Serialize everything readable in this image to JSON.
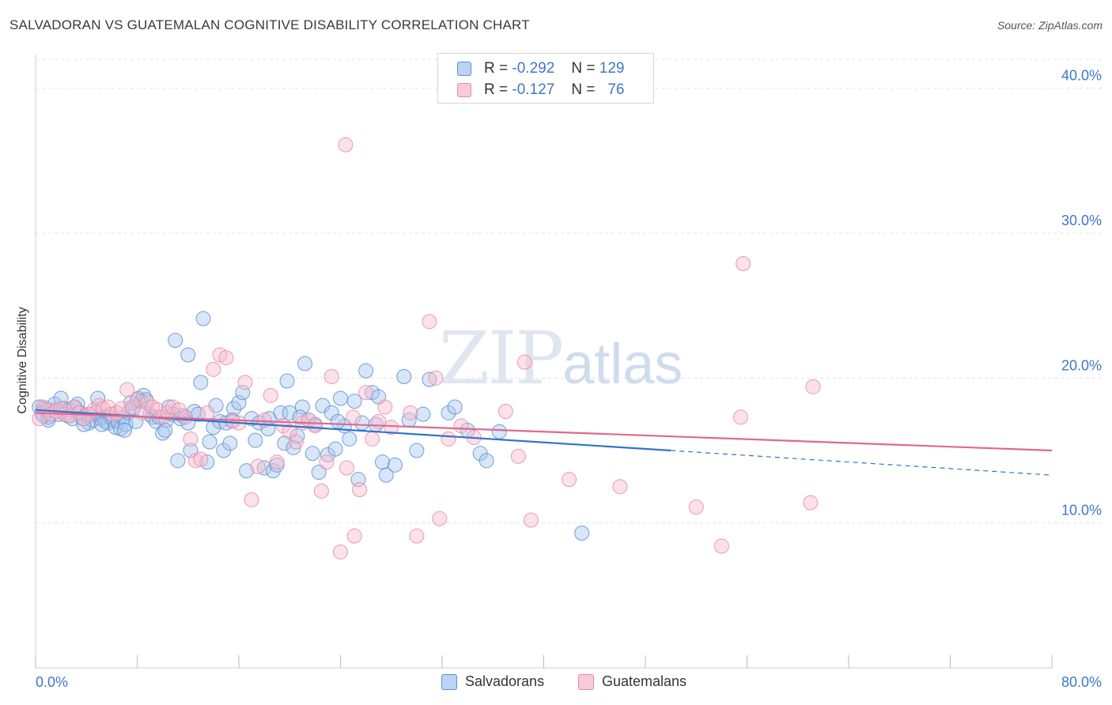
{
  "header": {
    "title": "SALVADORAN VS GUATEMALAN COGNITIVE DISABILITY CORRELATION CHART",
    "source": "Source: ZipAtlas.com"
  },
  "legend": {
    "rows": [
      {
        "r_label": "R =",
        "r_value": "-0.292",
        "n_label": "N =",
        "n_value": "129"
      },
      {
        "r_label": "R =",
        "r_value": "-0.127",
        "n_label": "N =",
        "n_value": "76"
      }
    ],
    "bottom": [
      "Salvadorans",
      "Guatemalans"
    ]
  },
  "watermark": {
    "zip": "ZIP",
    "atlas": "atlas"
  },
  "colors": {
    "blue_fill": "#a9c8f0",
    "blue_stroke": "#5b8fd4",
    "blue_line": "#2f74c8",
    "pink_fill": "#f6bccd",
    "pink_stroke": "#e98aa7",
    "pink_line": "#e0688e",
    "axis_text": "#3d78c9",
    "grid": "#e3e3e3"
  },
  "chart_data": {
    "type": "scatter",
    "title": "SALVADORAN VS GUATEMALAN COGNITIVE DISABILITY CORRELATION CHART",
    "xlabel": "",
    "ylabel": "Cognitive Disability",
    "xlim": [
      0,
      80
    ],
    "ylim": [
      0,
      42
    ],
    "x_tick_labels": [
      "0.0%",
      "80.0%"
    ],
    "y_ticks": [
      10,
      20,
      30,
      40
    ],
    "y_tick_labels": [
      "10.0%",
      "20.0%",
      "30.0%",
      "40.0%"
    ],
    "grid": true,
    "legend_position": "top-center",
    "series": [
      {
        "name": "Salvadorans",
        "r": -0.292,
        "n": 129,
        "trend": {
          "x_solid": [
            0,
            50
          ],
          "y_solid": [
            17.8,
            15.0
          ],
          "x_dashed": [
            50,
            80
          ],
          "y_dashed": [
            15.0,
            13.3
          ]
        },
        "points": [
          [
            0.3,
            18.0
          ],
          [
            0.5,
            17.6
          ],
          [
            0.7,
            17.9
          ],
          [
            1.0,
            17.1
          ],
          [
            1.2,
            17.8
          ],
          [
            1.5,
            18.2
          ],
          [
            1.8,
            17.5
          ],
          [
            2.0,
            18.6
          ],
          [
            2.2,
            17.9
          ],
          [
            2.5,
            17.4
          ],
          [
            2.7,
            17.8
          ],
          [
            2.9,
            17.2
          ],
          [
            3.1,
            18.0
          ],
          [
            3.3,
            18.2
          ],
          [
            3.5,
            17.6
          ],
          [
            3.7,
            17.2
          ],
          [
            4.0,
            17.4
          ],
          [
            4.2,
            16.9
          ],
          [
            4.5,
            17.1
          ],
          [
            4.7,
            17.6
          ],
          [
            4.9,
            18.6
          ],
          [
            5.1,
            17.2
          ],
          [
            5.3,
            17.3
          ],
          [
            5.5,
            17.0
          ],
          [
            5.7,
            16.9
          ],
          [
            5.9,
            17.3
          ],
          [
            6.1,
            17.1
          ],
          [
            6.3,
            16.6
          ],
          [
            6.5,
            17.0
          ],
          [
            6.7,
            16.5
          ],
          [
            6.9,
            17.3
          ],
          [
            7.1,
            16.8
          ],
          [
            7.3,
            17.6
          ],
          [
            7.5,
            18.3
          ],
          [
            7.7,
            17.9
          ],
          [
            7.9,
            17.0
          ],
          [
            8.1,
            18.6
          ],
          [
            8.3,
            18.4
          ],
          [
            8.5,
            18.8
          ],
          [
            8.7,
            18.5
          ],
          [
            9.0,
            17.5
          ],
          [
            9.2,
            17.3
          ],
          [
            9.5,
            17.0
          ],
          [
            9.7,
            17.3
          ],
          [
            10.0,
            16.2
          ],
          [
            10.3,
            17.1
          ],
          [
            10.5,
            18.0
          ],
          [
            10.8,
            17.5
          ],
          [
            11.0,
            22.6
          ],
          [
            11.2,
            14.3
          ],
          [
            11.4,
            17.2
          ],
          [
            11.6,
            17.4
          ],
          [
            12.0,
            16.9
          ],
          [
            12.2,
            15.0
          ],
          [
            12.5,
            17.7
          ],
          [
            12.8,
            17.5
          ],
          [
            13.0,
            19.7
          ],
          [
            13.2,
            24.1
          ],
          [
            13.5,
            14.2
          ],
          [
            13.7,
            15.6
          ],
          [
            14.0,
            16.6
          ],
          [
            14.2,
            18.1
          ],
          [
            14.5,
            17.0
          ],
          [
            14.8,
            15.0
          ],
          [
            15.0,
            16.9
          ],
          [
            15.3,
            15.5
          ],
          [
            15.6,
            17.9
          ],
          [
            16.0,
            18.3
          ],
          [
            16.3,
            19.0
          ],
          [
            16.6,
            13.6
          ],
          [
            17.0,
            17.2
          ],
          [
            17.3,
            15.7
          ],
          [
            17.6,
            16.9
          ],
          [
            18.0,
            13.8
          ],
          [
            18.4,
            17.2
          ],
          [
            18.7,
            13.6
          ],
          [
            19.0,
            14.0
          ],
          [
            19.3,
            17.6
          ],
          [
            19.6,
            15.5
          ],
          [
            19.8,
            19.8
          ],
          [
            20.0,
            17.6
          ],
          [
            20.3,
            15.2
          ],
          [
            20.6,
            16.0
          ],
          [
            21.0,
            18.0
          ],
          [
            21.2,
            21.0
          ],
          [
            21.5,
            17.1
          ],
          [
            21.8,
            14.8
          ],
          [
            22.0,
            16.8
          ],
          [
            22.3,
            13.5
          ],
          [
            22.6,
            18.1
          ],
          [
            23.0,
            14.7
          ],
          [
            23.3,
            17.6
          ],
          [
            23.6,
            15.1
          ],
          [
            24.0,
            18.6
          ],
          [
            24.3,
            16.7
          ],
          [
            24.7,
            15.8
          ],
          [
            25.1,
            18.4
          ],
          [
            25.4,
            13.0
          ],
          [
            25.7,
            16.9
          ],
          [
            26.0,
            20.5
          ],
          [
            26.5,
            19.0
          ],
          [
            27.0,
            18.7
          ],
          [
            27.3,
            14.2
          ],
          [
            27.6,
            13.3
          ],
          [
            28.3,
            14.0
          ],
          [
            29.0,
            20.1
          ],
          [
            29.4,
            17.1
          ],
          [
            30.0,
            15.0
          ],
          [
            31.0,
            19.9
          ],
          [
            32.5,
            17.6
          ],
          [
            33.0,
            18.0
          ],
          [
            34.0,
            16.4
          ],
          [
            35.0,
            14.8
          ],
          [
            35.5,
            14.3
          ],
          [
            36.5,
            16.3
          ],
          [
            43.0,
            9.3
          ],
          [
            12.0,
            21.6
          ],
          [
            10.2,
            16.4
          ],
          [
            7.0,
            16.4
          ],
          [
            5.2,
            16.8
          ],
          [
            3.8,
            16.8
          ],
          [
            1.0,
            17.3
          ],
          [
            0.6,
            17.4
          ],
          [
            15.5,
            17.1
          ],
          [
            18.3,
            16.5
          ],
          [
            20.8,
            17.3
          ],
          [
            23.8,
            17.0
          ],
          [
            26.8,
            16.8
          ],
          [
            30.5,
            17.5
          ]
        ]
      },
      {
        "name": "Guatemalans",
        "r": -0.127,
        "n": 76,
        "trend": {
          "x_solid": [
            0,
            80
          ],
          "y_solid": [
            17.6,
            15.0
          ]
        },
        "points": [
          [
            0.3,
            17.2
          ],
          [
            0.6,
            18.0
          ],
          [
            0.9,
            17.8
          ],
          [
            1.2,
            17.5
          ],
          [
            1.6,
            17.7
          ],
          [
            2.0,
            17.9
          ],
          [
            2.3,
            17.5
          ],
          [
            2.7,
            17.4
          ],
          [
            3.0,
            18.0
          ],
          [
            3.4,
            17.6
          ],
          [
            3.8,
            17.2
          ],
          [
            4.2,
            17.5
          ],
          [
            4.6,
            17.8
          ],
          [
            5.0,
            18.1
          ],
          [
            5.3,
            17.9
          ],
          [
            5.7,
            18.0
          ],
          [
            6.0,
            17.5
          ],
          [
            6.4,
            17.6
          ],
          [
            6.8,
            17.9
          ],
          [
            7.2,
            19.2
          ],
          [
            7.6,
            18.0
          ],
          [
            8.0,
            18.5
          ],
          [
            8.4,
            17.6
          ],
          [
            8.8,
            18.3
          ],
          [
            9.2,
            18.0
          ],
          [
            9.6,
            17.8
          ],
          [
            10.0,
            17.3
          ],
          [
            10.4,
            17.6
          ],
          [
            10.8,
            18.0
          ],
          [
            11.3,
            17.8
          ],
          [
            11.8,
            17.3
          ],
          [
            12.2,
            15.8
          ],
          [
            12.6,
            14.3
          ],
          [
            13.0,
            14.4
          ],
          [
            13.5,
            17.6
          ],
          [
            14.0,
            20.6
          ],
          [
            14.5,
            21.6
          ],
          [
            15.0,
            21.4
          ],
          [
            15.5,
            17.0
          ],
          [
            16.0,
            16.9
          ],
          [
            16.5,
            19.7
          ],
          [
            17.0,
            11.6
          ],
          [
            17.5,
            13.9
          ],
          [
            18.0,
            17.1
          ],
          [
            18.5,
            18.8
          ],
          [
            19.0,
            14.2
          ],
          [
            19.5,
            16.7
          ],
          [
            20.0,
            16.3
          ],
          [
            20.5,
            15.6
          ],
          [
            21.0,
            16.9
          ],
          [
            21.5,
            17.1
          ],
          [
            22.0,
            16.7
          ],
          [
            22.5,
            12.2
          ],
          [
            22.9,
            14.2
          ],
          [
            23.3,
            20.1
          ],
          [
            24.0,
            8.0
          ],
          [
            24.5,
            13.8
          ],
          [
            25.0,
            17.3
          ],
          [
            25.5,
            12.3
          ],
          [
            26.0,
            19.0
          ],
          [
            26.5,
            15.8
          ],
          [
            27.0,
            17.0
          ],
          [
            27.5,
            18.0
          ],
          [
            28.0,
            16.6
          ],
          [
            29.5,
            17.6
          ],
          [
            30.0,
            9.1
          ],
          [
            31.0,
            23.9
          ],
          [
            31.5,
            20.0
          ],
          [
            32.5,
            15.8
          ],
          [
            33.5,
            16.7
          ],
          [
            34.5,
            15.9
          ],
          [
            38.0,
            14.6
          ],
          [
            38.5,
            21.1
          ],
          [
            42.0,
            13.0
          ],
          [
            46.0,
            12.5
          ],
          [
            55.5,
            17.3
          ]
        ],
        "extra_points": [
          [
            24.4,
            36.1
          ],
          [
            55.7,
            27.9
          ],
          [
            52.0,
            11.1
          ],
          [
            61.0,
            11.4
          ],
          [
            54.0,
            8.4
          ],
          [
            61.2,
            19.4
          ],
          [
            25.1,
            9.1
          ],
          [
            31.8,
            10.3
          ],
          [
            39.0,
            10.2
          ],
          [
            37.0,
            17.7
          ]
        ]
      }
    ]
  }
}
